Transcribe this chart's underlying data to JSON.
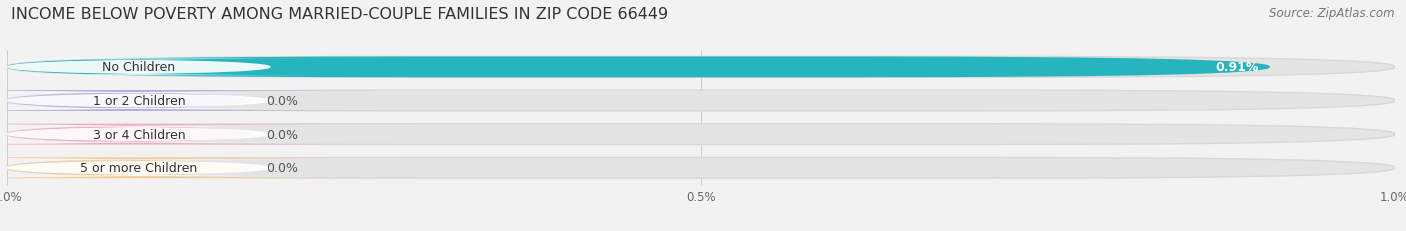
{
  "title": "INCOME BELOW POVERTY AMONG MARRIED-COUPLE FAMILIES IN ZIP CODE 66449",
  "source": "Source: ZipAtlas.com",
  "categories": [
    "No Children",
    "1 or 2 Children",
    "3 or 4 Children",
    "5 or more Children"
  ],
  "values": [
    0.91,
    0.0,
    0.0,
    0.0
  ],
  "bar_colors": [
    "#26b5be",
    "#b0aedd",
    "#f4a7bc",
    "#f5ca8a"
  ],
  "xlim_max": 1.0,
  "xticks": [
    0.0,
    0.5,
    1.0
  ],
  "xticklabels": [
    "0.0%",
    "0.5%",
    "1.0%"
  ],
  "background_color": "#f2f2f2",
  "bar_bg_color": "#e4e4e4",
  "bar_bg_outline": "#d8d8d8",
  "title_fontsize": 11.5,
  "source_fontsize": 8.5,
  "label_fontsize": 9,
  "value_fontsize": 9
}
